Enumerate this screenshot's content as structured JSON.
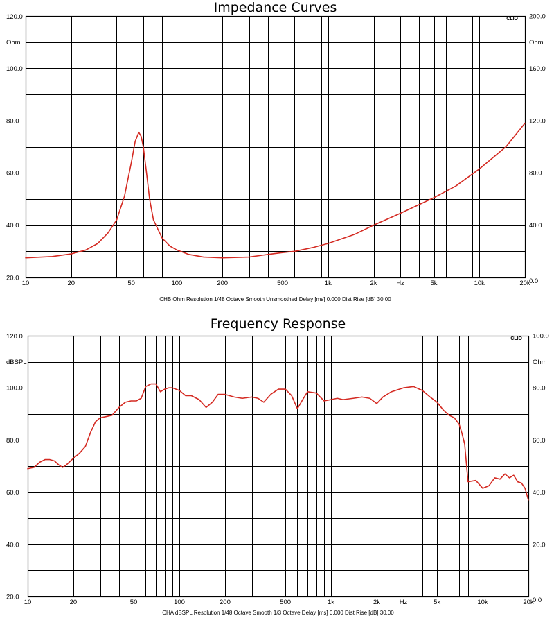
{
  "chart_data": [
    {
      "type": "line",
      "title": "Impedance Curves",
      "brand": "CLIO",
      "footer": "CHB Ohm Resolution 1/48 Octave Smooth Unsmoothed Delay [ms] 0.000 Dist Rise [dB] 30.00",
      "x_scale": "log",
      "xlim": [
        10,
        20000
      ],
      "x_ticks": [
        {
          "v": 10,
          "label": "10"
        },
        {
          "v": 20,
          "label": "20"
        },
        {
          "v": 50,
          "label": "50"
        },
        {
          "v": 100,
          "label": "100"
        },
        {
          "v": 200,
          "label": "200"
        },
        {
          "v": 500,
          "label": "500"
        },
        {
          "v": 1000,
          "label": "1k"
        },
        {
          "v": 2000,
          "label": "2k"
        },
        {
          "v": 5000,
          "label": "5k"
        },
        {
          "v": 10000,
          "label": "10k"
        },
        {
          "v": 20000,
          "label": "20k"
        }
      ],
      "x_unit": "Hz",
      "ylim": [
        20,
        120
      ],
      "y_ticks": [
        20,
        40,
        60,
        80,
        100,
        120
      ],
      "y_tick_labels": [
        "20.0",
        "40.0",
        "60.0",
        "80.0",
        "100.0",
        "120.0"
      ],
      "ylabel": "Ohm",
      "y2lim": [
        0,
        200
      ],
      "y2_tick_labels": [
        "0.0",
        "40.0",
        "80.0",
        "120.0",
        "160.0",
        "200.0"
      ],
      "y2label": "Ohm",
      "grid": true,
      "line_color": "#d42a22",
      "series": [
        {
          "x": [
            10,
            15,
            20,
            25,
            30,
            35,
            40,
            45,
            50,
            53,
            56,
            58,
            60,
            63,
            66,
            70,
            80,
            90,
            100,
            120,
            150,
            200,
            300,
            400,
            500,
            600,
            700,
            800,
            1000,
            1500,
            2000,
            3000,
            5000,
            7000,
            10000,
            15000,
            20000
          ],
          "y": [
            27.5,
            28,
            29,
            30.5,
            33,
            37,
            42,
            51,
            64,
            72,
            75.5,
            74,
            70,
            60,
            50,
            42,
            35,
            32,
            30.5,
            28.8,
            27.8,
            27.5,
            27.8,
            28.8,
            29.5,
            30,
            30.8,
            31.5,
            33,
            36.5,
            40,
            44.5,
            50.5,
            55,
            61.5,
            70,
            79
          ]
        }
      ]
    },
    {
      "type": "line",
      "title": "Frequency Response",
      "brand": "CLIO",
      "footer": "CHA dBSPL Resolution 1/48 Octave Smooth 1/3 Octave Delay [ms] 0.000 Dist Rise [dB] 30.00",
      "x_scale": "log",
      "xlim": [
        10,
        20000
      ],
      "x_ticks": [
        {
          "v": 10,
          "label": "10"
        },
        {
          "v": 20,
          "label": "20"
        },
        {
          "v": 50,
          "label": "50"
        },
        {
          "v": 100,
          "label": "100"
        },
        {
          "v": 200,
          "label": "200"
        },
        {
          "v": 500,
          "label": "500"
        },
        {
          "v": 1000,
          "label": "1k"
        },
        {
          "v": 2000,
          "label": "2k"
        },
        {
          "v": 5000,
          "label": "5k"
        },
        {
          "v": 10000,
          "label": "10k"
        },
        {
          "v": 20000,
          "label": "20k"
        }
      ],
      "x_unit": "Hz",
      "ylim": [
        20,
        120
      ],
      "y_ticks": [
        20,
        40,
        60,
        80,
        100,
        120
      ],
      "y_tick_labels": [
        "20.0",
        "40.0",
        "60.0",
        "80.0",
        "100.0",
        "120.0"
      ],
      "ylabel": "dBSPL",
      "y2lim": [
        0,
        100
      ],
      "y2_tick_labels": [
        "0.0",
        "20.0",
        "40.0",
        "60.0",
        "80.0",
        "100.0"
      ],
      "y2label": "Ohm",
      "grid": true,
      "line_color": "#d42a22",
      "series": [
        {
          "x": [
            10,
            11,
            12,
            13,
            14,
            15,
            16,
            17,
            18,
            20,
            22,
            24,
            26,
            28,
            30,
            33,
            36,
            40,
            44,
            48,
            52,
            56,
            60,
            65,
            70,
            75,
            80,
            85,
            90,
            100,
            110,
            120,
            135,
            150,
            165,
            180,
            200,
            230,
            260,
            300,
            330,
            360,
            400,
            450,
            500,
            550,
            600,
            650,
            700,
            800,
            900,
            1000,
            1100,
            1200,
            1400,
            1600,
            1800,
            2000,
            2200,
            2500,
            3000,
            3500,
            4000,
            4500,
            5000,
            5500,
            6000,
            6500,
            7000,
            7300,
            7600,
            8000,
            9000,
            10000,
            11000,
            12000,
            13000,
            14000,
            15000,
            16000,
            17000,
            18000,
            19000,
            20000
          ],
          "y": [
            69,
            69.5,
            71.5,
            72.5,
            72.5,
            72,
            70.5,
            69.5,
            70.5,
            73,
            75,
            77.5,
            83,
            87,
            88.5,
            89,
            89.5,
            92.5,
            94.5,
            95,
            95,
            96,
            100.5,
            101.5,
            101.5,
            98.5,
            99.5,
            100,
            100,
            99,
            97,
            97,
            95.5,
            92.5,
            94.5,
            97.5,
            97.5,
            96.5,
            96,
            96.5,
            96,
            94.5,
            97.5,
            99.5,
            99.5,
            97,
            92,
            95.5,
            98.5,
            98,
            95,
            95.5,
            96,
            95.5,
            96,
            96.5,
            96,
            94,
            96.5,
            98.5,
            100,
            100.5,
            99,
            96.5,
            94.5,
            91.5,
            89.5,
            88.5,
            86,
            82.5,
            78.5,
            64,
            64.5,
            61.5,
            62.5,
            65.5,
            65,
            67,
            65.5,
            66.5,
            64,
            63.5,
            61.5,
            57
          ]
        }
      ]
    }
  ]
}
